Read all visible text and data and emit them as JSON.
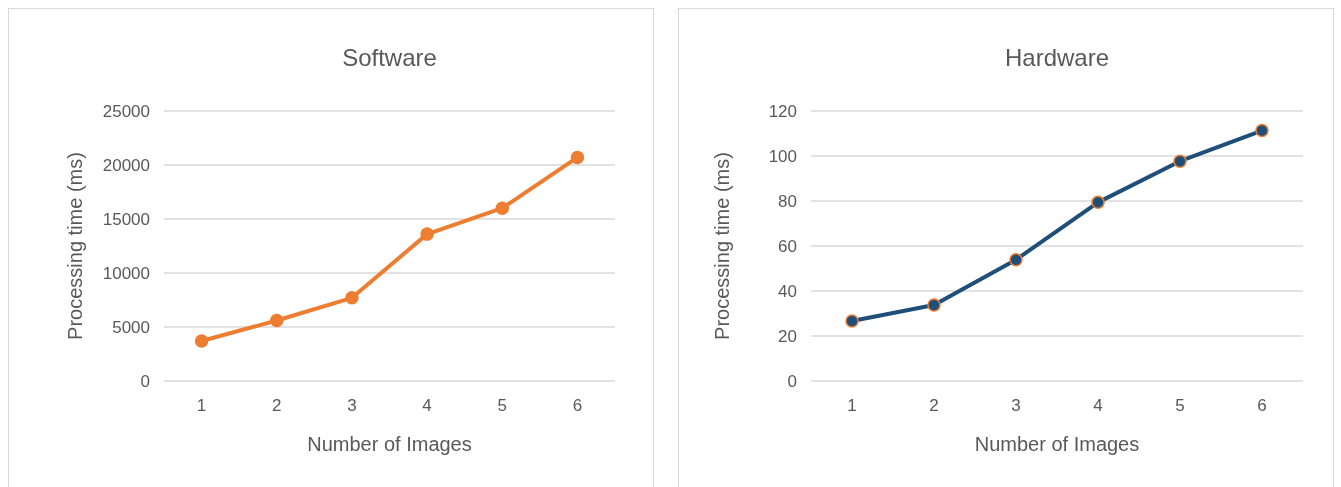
{
  "chart_data": [
    {
      "type": "line",
      "title": "Software",
      "xlabel": "Number of Images",
      "ylabel": "Processing time (ms)",
      "categories": [
        "1",
        "2",
        "3",
        "4",
        "5",
        "6"
      ],
      "series": [
        {
          "color": "#ed7d31",
          "values": [
            3700,
            5600,
            7700,
            13600,
            16000,
            20700
          ]
        }
      ],
      "ylim": [
        0,
        25000
      ],
      "yticks": [
        0,
        5000,
        10000,
        15000,
        20000,
        25000
      ],
      "grid": "y",
      "marker": "circle",
      "line_style": "solid"
    },
    {
      "type": "line",
      "title": "Hardware",
      "xlabel": "Number of Images",
      "ylabel": "Processing time (ms)",
      "categories": [
        "1",
        "2",
        "3",
        "4",
        "5",
        "6"
      ],
      "series": [
        {
          "color": "#1f4e79",
          "values": [
            26.7,
            33.8,
            53.9,
            79.4,
            97.7,
            111.3
          ]
        }
      ],
      "ylim": [
        0,
        120
      ],
      "yticks": [
        0,
        20,
        40,
        60,
        80,
        100,
        120
      ],
      "grid": "y",
      "marker": "circle",
      "line_style": "solid"
    }
  ]
}
